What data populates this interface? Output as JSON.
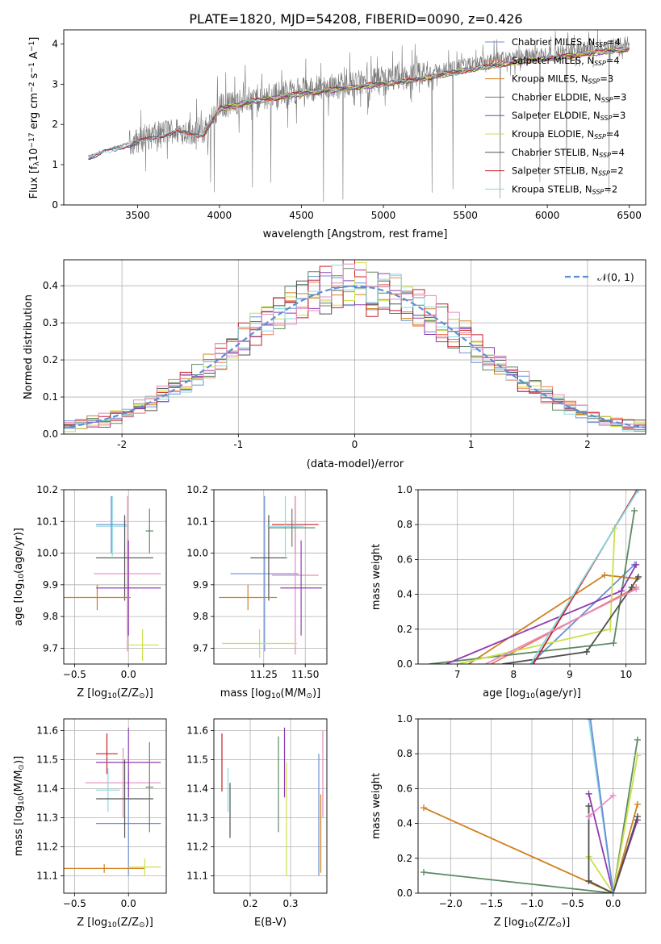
{
  "figure_title": "PLATE=1820, MJD=54208, FIBERID=0090, z=0.426",
  "colors": {
    "Chabrier MILES": "#6a8fd3",
    "Salpeter MILES": "#f07a5a",
    "Kroupa MILES": "#d0801e",
    "Chabrier ELODIE": "#5c8a62",
    "Salpeter ELODIE": "#8e3bb1",
    "Kroupa ELODIE": "#cbe04a",
    "Chabrier STELIB": "#505050",
    "Salpeter STELIB": "#c4222a",
    "Kroupa STELIB": "#8ad8e2",
    "normal": "#5b8fd8",
    "data": "#7a7a7a",
    "pink": "#e48bbf"
  },
  "chart_data": [
    {
      "id": "spectrum",
      "type": "line",
      "xlabel": "wavelength [Angstrom, rest frame]",
      "ylabel_parts": [
        "Flux [f",
        "λ",
        "10",
        "−17",
        " erg cm",
        "−2",
        " s",
        "−1",
        " A",
        "−1",
        "]"
      ],
      "xlim": [
        3050,
        6600
      ],
      "ylim": [
        0,
        4.35
      ],
      "xticks": [
        3500,
        4000,
        4500,
        5000,
        5500,
        6000,
        6500
      ],
      "yticks": [
        0,
        1,
        2,
        3,
        4
      ],
      "grid": false,
      "legend_position": "upper-right",
      "data_trend": {
        "x": [
          3200,
          3300,
          3500,
          3700,
          3900,
          4000,
          4200,
          4500,
          4800,
          5000,
          5200,
          5500,
          5800,
          6000,
          6200,
          6400,
          6500
        ],
        "y": [
          1.2,
          1.35,
          1.6,
          1.85,
          1.8,
          2.45,
          2.65,
          2.85,
          3.0,
          3.1,
          3.2,
          3.45,
          3.65,
          3.75,
          3.85,
          3.95,
          4.0
        ]
      },
      "legend": [
        {
          "label_main": "Chabrier MILES, N",
          "sub": "SSP",
          "tail": "=4",
          "color_key": "Chabrier MILES"
        },
        {
          "label_main": "Salpeter MILES, N",
          "sub": "SSP",
          "tail": "=4",
          "color_key": "Salpeter MILES"
        },
        {
          "label_main": "Kroupa MILES, N",
          "sub": "SSP",
          "tail": "=3",
          "color_key": "Kroupa MILES"
        },
        {
          "label_main": "Chabrier ELODIE, N",
          "sub": "SSP",
          "tail": "=3",
          "color_key": "Chabrier ELODIE"
        },
        {
          "label_main": "Salpeter ELODIE, N",
          "sub": "SSP",
          "tail": "=3",
          "color_key": "Salpeter ELODIE"
        },
        {
          "label_main": "Kroupa ELODIE, N",
          "sub": "SSP",
          "tail": "=4",
          "color_key": "Kroupa ELODIE"
        },
        {
          "label_main": "Chabrier STELIB, N",
          "sub": "SSP",
          "tail": "=4",
          "color_key": "Chabrier STELIB"
        },
        {
          "label_main": "Salpeter STELIB, N",
          "sub": "SSP",
          "tail": "=2",
          "color_key": "Salpeter STELIB"
        },
        {
          "label_main": "Kroupa STELIB, N",
          "sub": "SSP",
          "tail": "=2",
          "color_key": "Kroupa STELIB"
        }
      ]
    },
    {
      "id": "residuals",
      "type": "line",
      "xlabel": "(data-model)/error",
      "ylabel": "Normed distribution",
      "xlim": [
        -2.5,
        2.5
      ],
      "ylim": [
        0,
        0.47
      ],
      "xticks": [
        -2,
        -1,
        0,
        1,
        2
      ],
      "yticks": [
        0.0,
        0.1,
        0.2,
        0.3,
        0.4
      ],
      "grid": true,
      "legend_position": "upper-right",
      "normal_label": "𝒩(0, 1)",
      "bin_width": 0.1,
      "hist_bin_start": -2.5
    },
    {
      "id": "age_vs_Z",
      "type": "scatter",
      "xlabel_parts": [
        "Z [log",
        "10",
        "(Z/Z",
        "⊙",
        ")]"
      ],
      "ylabel_parts": [
        "age  [log",
        "10",
        "(age/yr)]"
      ],
      "xlim": [
        -0.6,
        0.35
      ],
      "ylim": [
        9.65,
        10.2
      ],
      "xticks": [
        -0.5,
        0.0
      ],
      "yticks": [
        9.7,
        9.8,
        9.9,
        10.0,
        10.1,
        10.2
      ],
      "xtick_labels": [
        "−0.5",
        "0.0"
      ],
      "grid": true,
      "crosses": [
        {
          "c": "Kroupa STELIB",
          "x": [
            -0.3,
            0.0
          ],
          "y": [
            9.99,
            10.18
          ]
        },
        {
          "c": "pink",
          "x": [
            -0.32,
            0.3
          ],
          "y": [
            9.69,
            10.18
          ]
        },
        {
          "c": "Chabrier MILES",
          "x": [
            -0.3,
            -0.02
          ],
          "y": [
            10.0,
            10.18
          ]
        },
        {
          "c": "Chabrier STELIB",
          "x": [
            -0.3,
            0.23
          ],
          "y": [
            9.85,
            10.12
          ]
        },
        {
          "c": "Salpeter ELODIE",
          "x": [
            -0.3,
            0.3
          ],
          "y": [
            9.74,
            10.04
          ]
        },
        {
          "c": "Kroupa MILES",
          "x": [
            -0.6,
            0.02
          ],
          "y": [
            9.82,
            9.9
          ]
        },
        {
          "c": "Chabrier ELODIE",
          "x": [
            0.16,
            0.23
          ],
          "y": [
            10.0,
            10.14
          ]
        },
        {
          "c": "Kroupa ELODIE",
          "x": [
            -0.02,
            0.28
          ],
          "y": [
            9.66,
            9.76
          ]
        }
      ]
    },
    {
      "id": "age_vs_mass",
      "type": "scatter",
      "xlabel_parts": [
        "mass [log",
        "10",
        "(M/M",
        "⊙",
        ")]"
      ],
      "xlim": [
        10.95,
        11.63
      ],
      "ylim": [
        9.65,
        10.2
      ],
      "xticks": [
        11.25,
        11.5
      ],
      "xtick_labels": [
        "11.25",
        "11.50"
      ],
      "yticks": [
        9.7,
        9.8,
        9.9,
        10.0,
        10.1,
        10.2
      ],
      "grid": true,
      "crosses": [
        {
          "c": "Chabrier MILES",
          "x": [
            11.05,
            11.46
          ],
          "y": [
            9.69,
            10.18
          ]
        },
        {
          "c": "Salpeter STELIB",
          "x": [
            11.3,
            11.58
          ],
          "y": [
            10.0,
            10.18
          ]
        },
        {
          "c": "pink",
          "x": [
            11.3,
            11.58
          ],
          "y": [
            9.68,
            10.18
          ]
        },
        {
          "c": "Chabrier STELIB",
          "x": [
            11.17,
            11.39
          ],
          "y": [
            9.85,
            10.12
          ]
        },
        {
          "c": "Salpeter ELODIE",
          "x": [
            11.35,
            11.6
          ],
          "y": [
            9.74,
            10.04
          ]
        },
        {
          "c": "Kroupa MILES",
          "x": [
            10.98,
            11.33
          ],
          "y": [
            9.82,
            9.9
          ]
        },
        {
          "c": "Kroupa STELIB",
          "x": [
            11.27,
            11.49
          ],
          "y": [
            9.99,
            10.18
          ]
        },
        {
          "c": "Kroupa ELODIE",
          "x": [
            11.0,
            11.45
          ],
          "y": [
            9.67,
            9.76
          ]
        },
        {
          "c": "Chabrier ELODIE",
          "x": [
            11.28,
            11.56
          ],
          "y": [
            10.02,
            10.14
          ]
        }
      ]
    },
    {
      "id": "massweight_vs_age",
      "type": "line",
      "xlabel_parts": [
        "age  [log",
        "10",
        "(age/yr)]"
      ],
      "ylabel": "mass weight",
      "xlim": [
        6.3,
        10.35
      ],
      "ylim": [
        0,
        1.0
      ],
      "xticks": [
        7,
        8,
        9,
        10
      ],
      "yticks": [
        0.0,
        0.2,
        0.4,
        0.6,
        0.8,
        1.0
      ],
      "grid": true,
      "series": [
        {
          "c": "Chabrier MILES",
          "x": [
            8.3,
            10.15
          ],
          "y": [
            0.0,
            0.57
          ]
        },
        {
          "c": "Salpeter MILES",
          "x": [
            7.6,
            10.18
          ],
          "y": [
            0.0,
            0.44
          ]
        },
        {
          "c": "Kroupa MILES",
          "x": [
            7.2,
            9.62,
            10.2
          ],
          "y": [
            0.0,
            0.51,
            0.49
          ]
        },
        {
          "c": "Chabrier ELODIE",
          "x": [
            6.5,
            9.78,
            10.15
          ],
          "y": [
            0.0,
            0.12,
            0.88
          ]
        },
        {
          "c": "Salpeter ELODIE",
          "x": [
            6.8,
            9.92,
            10.18
          ],
          "y": [
            0.0,
            0.42,
            0.57
          ]
        },
        {
          "c": "Kroupa ELODIE",
          "x": [
            7.0,
            9.72,
            9.8
          ],
          "y": [
            0.0,
            0.2,
            0.78
          ]
        },
        {
          "c": "Chabrier STELIB",
          "x": [
            7.8,
            9.3,
            10.1,
            10.22
          ],
          "y": [
            0.0,
            0.07,
            0.44,
            0.5
          ]
        },
        {
          "c": "Salpeter STELIB",
          "x": [
            8.35,
            10.2
          ],
          "y": [
            0.0,
            1.0
          ]
        },
        {
          "c": "Kroupa STELIB",
          "x": [
            8.3,
            10.22
          ],
          "y": [
            0.0,
            1.0
          ]
        },
        {
          "c": "pink",
          "x": [
            7.5,
            10.18
          ],
          "y": [
            0.0,
            0.43
          ]
        }
      ]
    },
    {
      "id": "mass_vs_Z",
      "type": "scatter",
      "xlabel_parts": [
        "Z [log",
        "10",
        "(Z/Z",
        "⊙",
        ")]"
      ],
      "ylabel_parts": [
        "mass [log",
        "10",
        "(M/M",
        "⊙",
        ")]"
      ],
      "xlim": [
        -0.6,
        0.35
      ],
      "ylim": [
        11.04,
        11.64
      ],
      "xticks": [
        -0.5,
        0.0
      ],
      "xtick_labels": [
        "−0.5",
        "0.0"
      ],
      "yticks": [
        11.1,
        11.2,
        11.3,
        11.4,
        11.5,
        11.6
      ],
      "grid": true,
      "crosses": [
        {
          "c": "Salpeter STELIB",
          "x": [
            -0.3,
            -0.1
          ],
          "y": [
            11.45,
            11.59
          ]
        },
        {
          "c": "pink",
          "x": [
            -0.4,
            0.3
          ],
          "y": [
            11.3,
            11.54
          ]
        },
        {
          "c": "Kroupa STELIB",
          "x": [
            -0.3,
            -0.08
          ],
          "y": [
            11.32,
            11.47
          ]
        },
        {
          "c": "Chabrier MILES",
          "x": [
            -0.3,
            0.3
          ],
          "y": [
            11.1,
            11.46
          ]
        },
        {
          "c": "Salpeter ELODIE",
          "x": [
            -0.3,
            0.3
          ],
          "y": [
            11.37,
            11.61
          ]
        },
        {
          "c": "Chabrier STELIB",
          "x": [
            -0.3,
            0.23
          ],
          "y": [
            11.23,
            11.5
          ]
        },
        {
          "c": "Chabrier ELODIE",
          "x": [
            0.16,
            0.23
          ],
          "y": [
            11.25,
            11.56
          ]
        },
        {
          "c": "Kroupa MILES",
          "x": [
            -0.6,
            0.15
          ],
          "y": [
            11.11,
            11.14
          ]
        },
        {
          "c": "Kroupa ELODIE",
          "x": [
            0.0,
            0.3
          ],
          "y": [
            11.1,
            11.16
          ]
        }
      ]
    },
    {
      "id": "mass_vs_EBV",
      "type": "scatter",
      "xlabel": "E(B-V)",
      "xlim": [
        0.11,
        0.39
      ],
      "ylim": [
        11.04,
        11.64
      ],
      "xticks": [
        0.2,
        0.3
      ],
      "xtick_labels": [
        "0.2",
        "0.3"
      ],
      "yticks": [
        11.1,
        11.2,
        11.3,
        11.4,
        11.5,
        11.6
      ],
      "grid": true,
      "crosses": [
        {
          "c": "Salpeter STELIB",
          "x": [
            0.13,
            0.13
          ],
          "y": [
            11.39,
            11.59
          ]
        },
        {
          "c": "Kroupa STELIB",
          "x": [
            0.145,
            0.145
          ],
          "y": [
            11.32,
            11.47
          ]
        },
        {
          "c": "Chabrier STELIB",
          "x": [
            0.15,
            0.15
          ],
          "y": [
            11.23,
            11.42
          ]
        },
        {
          "c": "Chabrier ELODIE",
          "x": [
            0.27,
            0.27
          ],
          "y": [
            11.25,
            11.58
          ]
        },
        {
          "c": "Salpeter ELODIE",
          "x": [
            0.285,
            0.285
          ],
          "y": [
            11.37,
            11.61
          ]
        },
        {
          "c": "Kroupa ELODIE",
          "x": [
            0.29,
            0.29
          ],
          "y": [
            11.1,
            11.49
          ]
        },
        {
          "c": "Chabrier MILES",
          "x": [
            0.37,
            0.37
          ],
          "y": [
            11.1,
            11.52
          ]
        },
        {
          "c": "Kroupa MILES",
          "x": [
            0.375,
            0.375
          ],
          "y": [
            11.11,
            11.38
          ]
        },
        {
          "c": "pink",
          "x": [
            0.38,
            0.38
          ],
          "y": [
            11.3,
            11.6
          ]
        }
      ]
    },
    {
      "id": "massweight_vs_Z",
      "type": "line",
      "xlabel_parts": [
        "Z [log",
        "10",
        "(Z/Z",
        "⊙",
        ")]"
      ],
      "ylabel": "mass weight",
      "xlim": [
        -2.4,
        0.4
      ],
      "ylim": [
        0,
        1.0
      ],
      "xticks": [
        -2.0,
        -1.5,
        -1.0,
        -0.5,
        0.0
      ],
      "xtick_labels": [
        "−2.0",
        "−1.5",
        "−1.0",
        "−0.5",
        "0.0"
      ],
      "yticks": [
        0.0,
        0.2,
        0.4,
        0.6,
        0.8,
        1.0
      ],
      "grid": true,
      "series": [
        {
          "c": "Kroupa MILES",
          "x": [
            -2.33,
            0.0,
            0.3
          ],
          "y": [
            0.49,
            0.0,
            0.51
          ]
        },
        {
          "c": "Chabrier ELODIE",
          "x": [
            -2.33,
            0.0,
            0.3
          ],
          "y": [
            0.12,
            0.0,
            0.88
          ]
        },
        {
          "c": "Kroupa ELODIE",
          "x": [
            -0.3,
            0.0,
            0.3
          ],
          "y": [
            0.21,
            0.0,
            0.79
          ]
        },
        {
          "c": "Salpeter ELODIE",
          "x": [
            -0.3,
            0.0,
            0.3
          ],
          "y": [
            0.57,
            0.0,
            0.42
          ]
        },
        {
          "c": "Chabrier STELIB",
          "x": [
            -0.3,
            -0.3,
            0.0,
            0.3
          ],
          "y": [
            0.5,
            0.07,
            0.0,
            0.44
          ]
        },
        {
          "c": "Kroupa STELIB",
          "x": [
            -0.3,
            0.0
          ],
          "y": [
            1.0,
            0.0
          ]
        },
        {
          "c": "Chabrier MILES",
          "x": [
            -0.28,
            0.0
          ],
          "y": [
            1.0,
            0.0
          ]
        },
        {
          "c": "pink",
          "x": [
            -0.3,
            0.0
          ],
          "y": [
            0.44,
            0.56
          ]
        }
      ]
    }
  ]
}
